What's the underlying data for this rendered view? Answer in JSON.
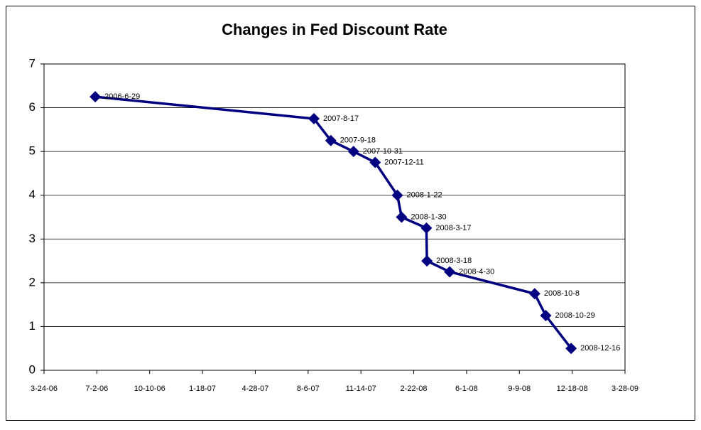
{
  "chart_data": {
    "type": "line",
    "title": "Changes in Fed Discount Rate",
    "x": [
      "2006-6-29",
      "2007-8-17",
      "2007-9-18",
      "2007-10-31",
      "2007-12-11",
      "2008-1-22",
      "2008-1-30",
      "2008-3-17",
      "2008-3-18",
      "2008-4-30",
      "2008-10-8",
      "2008-10-29",
      "2008-12-16"
    ],
    "values": [
      6.25,
      5.75,
      5.25,
      5.0,
      4.75,
      4.0,
      3.5,
      3.25,
      2.5,
      2.25,
      1.75,
      1.25,
      0.5
    ],
    "color": "#000080",
    "xlim": [
      "2006-03-24",
      "2009-03-28"
    ],
    "xticks": [
      {
        "value": "2006-03-24",
        "label": "3-24-06"
      },
      {
        "value": "2006-07-02",
        "label": "7-2-06"
      },
      {
        "value": "2006-10-10",
        "label": "10-10-06"
      },
      {
        "value": "2007-01-18",
        "label": "1-18-07"
      },
      {
        "value": "2007-04-28",
        "label": "4-28-07"
      },
      {
        "value": "2007-08-06",
        "label": "8-6-07"
      },
      {
        "value": "2007-11-14",
        "label": "11-14-07"
      },
      {
        "value": "2008-02-22",
        "label": "2-22-08"
      },
      {
        "value": "2008-06-01",
        "label": "6-1-08"
      },
      {
        "value": "2008-09-09",
        "label": "9-9-08"
      },
      {
        "value": "2008-12-18",
        "label": "12-18-08"
      },
      {
        "value": "2009-03-28",
        "label": "3-28-09"
      }
    ],
    "ylim": [
      0,
      7
    ],
    "yticks": [
      0,
      1,
      2,
      3,
      4,
      5,
      6,
      7
    ],
    "grid": true
  }
}
